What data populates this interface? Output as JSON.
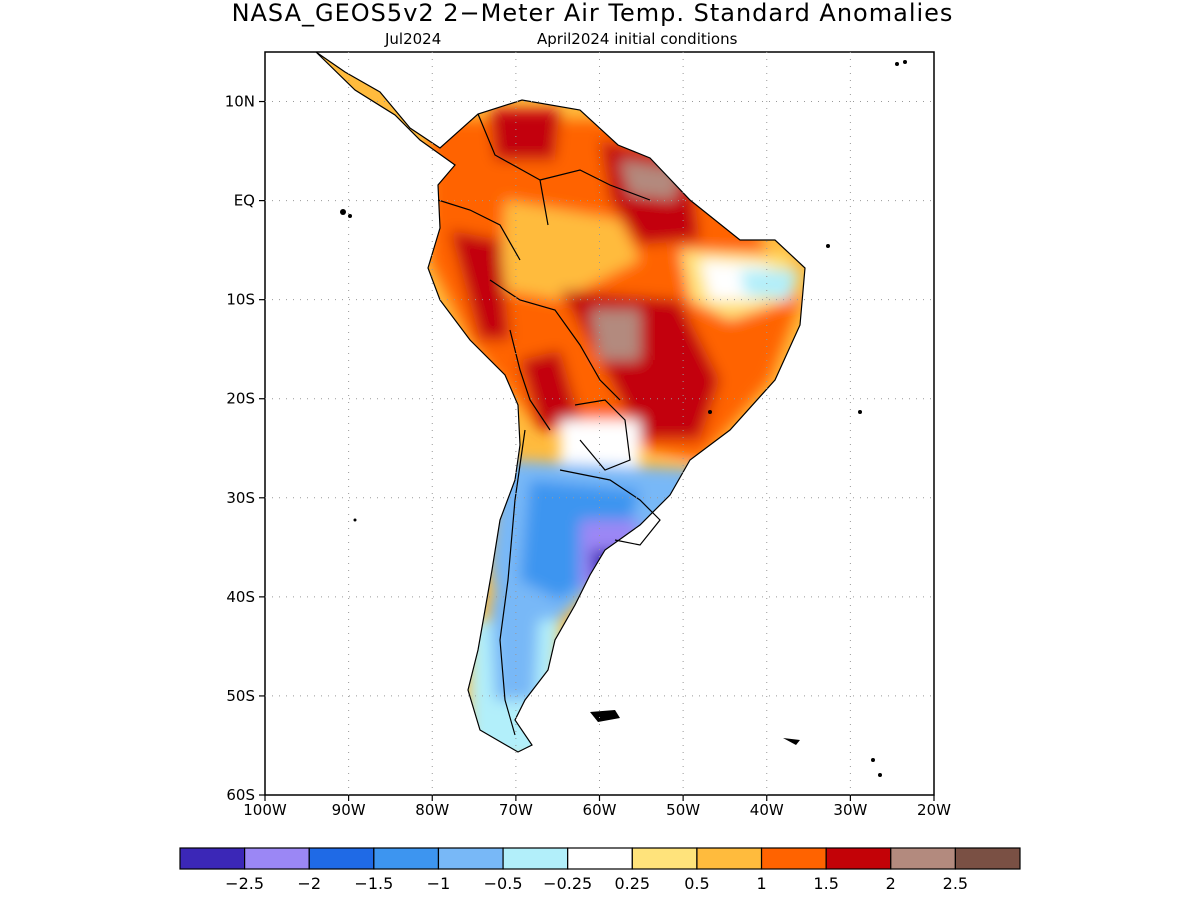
{
  "title": "NASA_GEOS5v2 2−Meter Air Temp. Standard Anomalies",
  "subtitle": {
    "month": "Jul2024",
    "initial_conditions": "April2024 initial conditions"
  },
  "map": {
    "lon_range": [
      -100,
      -20
    ],
    "lat_range": [
      -60,
      15
    ],
    "lat_ticks": [
      "10N",
      "EQ",
      "10S",
      "20S",
      "30S",
      "40S",
      "50S",
      "60S"
    ],
    "lon_ticks": [
      "100W",
      "90W",
      "80W",
      "70W",
      "60W",
      "50W",
      "40W",
      "30W",
      "20W"
    ],
    "grid": true
  },
  "colorbar": {
    "colors": [
      "#3b27b7",
      "#9b87f5",
      "#1f6ae6",
      "#3d95f0",
      "#78b8f7",
      "#b2effa",
      "#ffffff",
      "#ffe37b",
      "#ffbb3d",
      "#ff6300",
      "#c30207",
      "#b38a7e",
      "#7a5044"
    ],
    "labels": [
      "−2.5",
      "−2",
      "−1.5",
      "−1",
      "−0.5",
      "−0.25",
      "0.25",
      "0.5",
      "1",
      "1.5",
      "2",
      "2.5"
    ]
  }
}
